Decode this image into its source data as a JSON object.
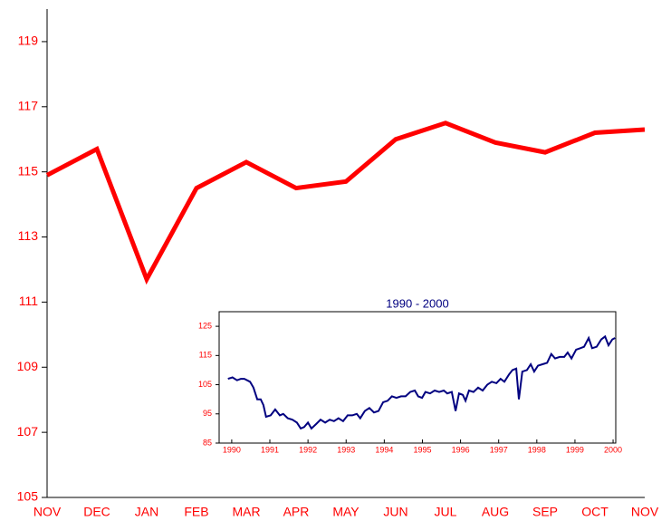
{
  "chart_data": [
    {
      "type": "line",
      "color": "#ff0000",
      "categories": [
        "NOV",
        "DEC",
        "JAN",
        "FEB",
        "MAR",
        "APR",
        "MAY",
        "JUN",
        "JUL",
        "AUG",
        "SEP",
        "OCT",
        "NOV"
      ],
      "values": [
        114.9,
        115.7,
        111.7,
        114.5,
        115.3,
        114.5,
        114.7,
        116.0,
        116.5,
        115.9,
        115.6,
        116.2,
        116.3
      ],
      "ylim": [
        105,
        120
      ],
      "yticks": [
        105,
        107,
        109,
        111,
        113,
        115,
        117,
        119
      ]
    },
    {
      "type": "line",
      "title": "1990 - 2000",
      "color": "#000080",
      "x": [
        1989.9,
        1990.02,
        1990.14,
        1990.24,
        1990.33,
        1990.48,
        1990.57,
        1990.67,
        1990.76,
        1990.83,
        1990.9,
        1991.02,
        1991.14,
        1991.26,
        1991.35,
        1991.47,
        1991.59,
        1991.71,
        1991.81,
        1991.9,
        1992.0,
        1992.09,
        1992.21,
        1992.33,
        1992.45,
        1992.57,
        1992.68,
        1992.8,
        1992.92,
        1993.04,
        1993.16,
        1993.28,
        1993.37,
        1993.49,
        1993.61,
        1993.73,
        1993.85,
        1993.97,
        1994.09,
        1994.2,
        1994.32,
        1994.44,
        1994.56,
        1994.68,
        1994.8,
        1994.89,
        1994.99,
        1995.08,
        1995.2,
        1995.32,
        1995.44,
        1995.56,
        1995.65,
        1995.77,
        1995.87,
        1995.96,
        1996.06,
        1996.13,
        1996.22,
        1996.34,
        1996.46,
        1996.58,
        1996.7,
        1996.82,
        1996.94,
        1997.05,
        1997.15,
        1997.27,
        1997.36,
        1997.46,
        1997.53,
        1997.62,
        1997.74,
        1997.84,
        1997.93,
        1998.03,
        1998.15,
        1998.27,
        1998.38,
        1998.48,
        1998.6,
        1998.72,
        1998.81,
        1998.91,
        1999.03,
        1999.14,
        1999.24,
        1999.36,
        1999.45,
        1999.57,
        1999.69,
        1999.79,
        1999.88,
        1999.98,
        2000.05
      ],
      "values": [
        107,
        107.5,
        106.5,
        107,
        107,
        106,
        104,
        100,
        100,
        98,
        94,
        94.5,
        96.5,
        94.5,
        95,
        93.5,
        93,
        92,
        90,
        90.5,
        92,
        90,
        91.5,
        93,
        92,
        93,
        92.5,
        93.5,
        92.5,
        94.5,
        94.5,
        95,
        93.5,
        96,
        97,
        95.5,
        96,
        99,
        99.5,
        101,
        100.5,
        101,
        101,
        102.5,
        103,
        101,
        100.5,
        102.5,
        102,
        103,
        102.5,
        103,
        102,
        102.5,
        96,
        102,
        101.5,
        99.5,
        103,
        102.5,
        104,
        103,
        105,
        106,
        105.5,
        107,
        106,
        108.5,
        110,
        110.5,
        100,
        109.5,
        110,
        112,
        109.5,
        111.5,
        112,
        112.5,
        115.5,
        114,
        114.5,
        114.5,
        116,
        114,
        117,
        117.5,
        118,
        121,
        117.5,
        118,
        120.5,
        121.5,
        118.5,
        120.5,
        121
      ],
      "xlim": [
        1989.67,
        2000.07
      ],
      "xticks": [
        1990,
        1991,
        1992,
        1993,
        1994,
        1995,
        1996,
        1997,
        1998,
        1999,
        2000
      ],
      "ylim": [
        85,
        130
      ],
      "yticks": [
        85,
        95,
        105,
        115,
        125
      ]
    }
  ]
}
